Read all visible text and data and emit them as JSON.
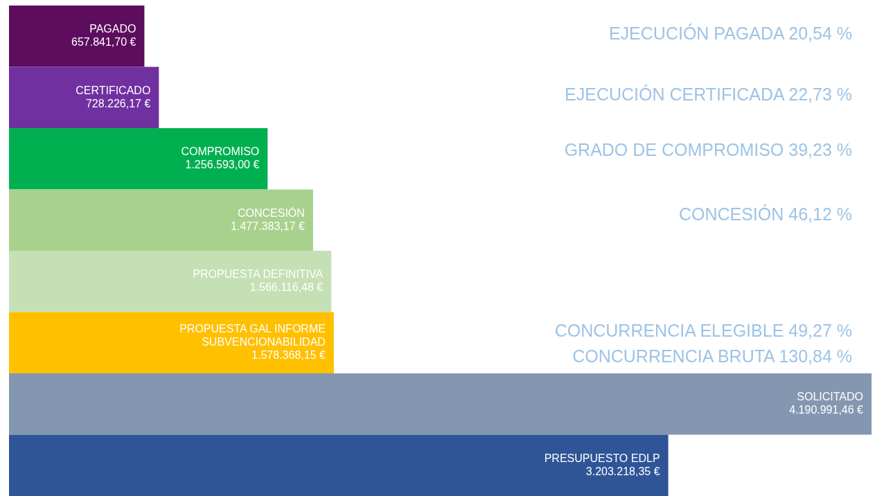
{
  "chart_data": {
    "type": "bar",
    "orientation": "horizontal",
    "categories": [
      "PAGADO",
      "CERTIFICADO",
      "COMPROMISO",
      "CONCESIÓN",
      "PROPUESTA DEFINITIVA",
      "PROPUESTA GAL INFORME SUBVENCIONABILIDAD",
      "SOLICITADO",
      "PRESUPUESTO EDLP"
    ],
    "values": [
      657841.7,
      728226.17,
      1256593.0,
      1477383.17,
      1566116.48,
      1578368.15,
      4190991.46,
      3203218.35
    ],
    "colors": [
      "#5c0d5e",
      "#7030a0",
      "#00b050",
      "#a9d18e",
      "#c5e0b4",
      "#ffc000",
      "#8497b0",
      "#2f5597"
    ],
    "value_labels": [
      "657.841,70 €",
      "728.226,17 €",
      "1.256.593,00 €",
      "1.477.383,17 €",
      "1.566.116,48 €",
      "1.578.368,15 €",
      "4.190.991,46 €",
      "3.203.218,35 €"
    ],
    "annotations": [
      "EJECUCIÓN PAGADA 20,54 %",
      "EJECUCIÓN CERTIFICADA 22,73 %",
      "GRADO DE COMPROMISO 39,23 %",
      "CONCESIÓN 46,12 %",
      "CONCURRENCIA ELEGIBLE 49,27 %",
      "CONCURRENCIA BRUTA 130,84 %"
    ]
  }
}
